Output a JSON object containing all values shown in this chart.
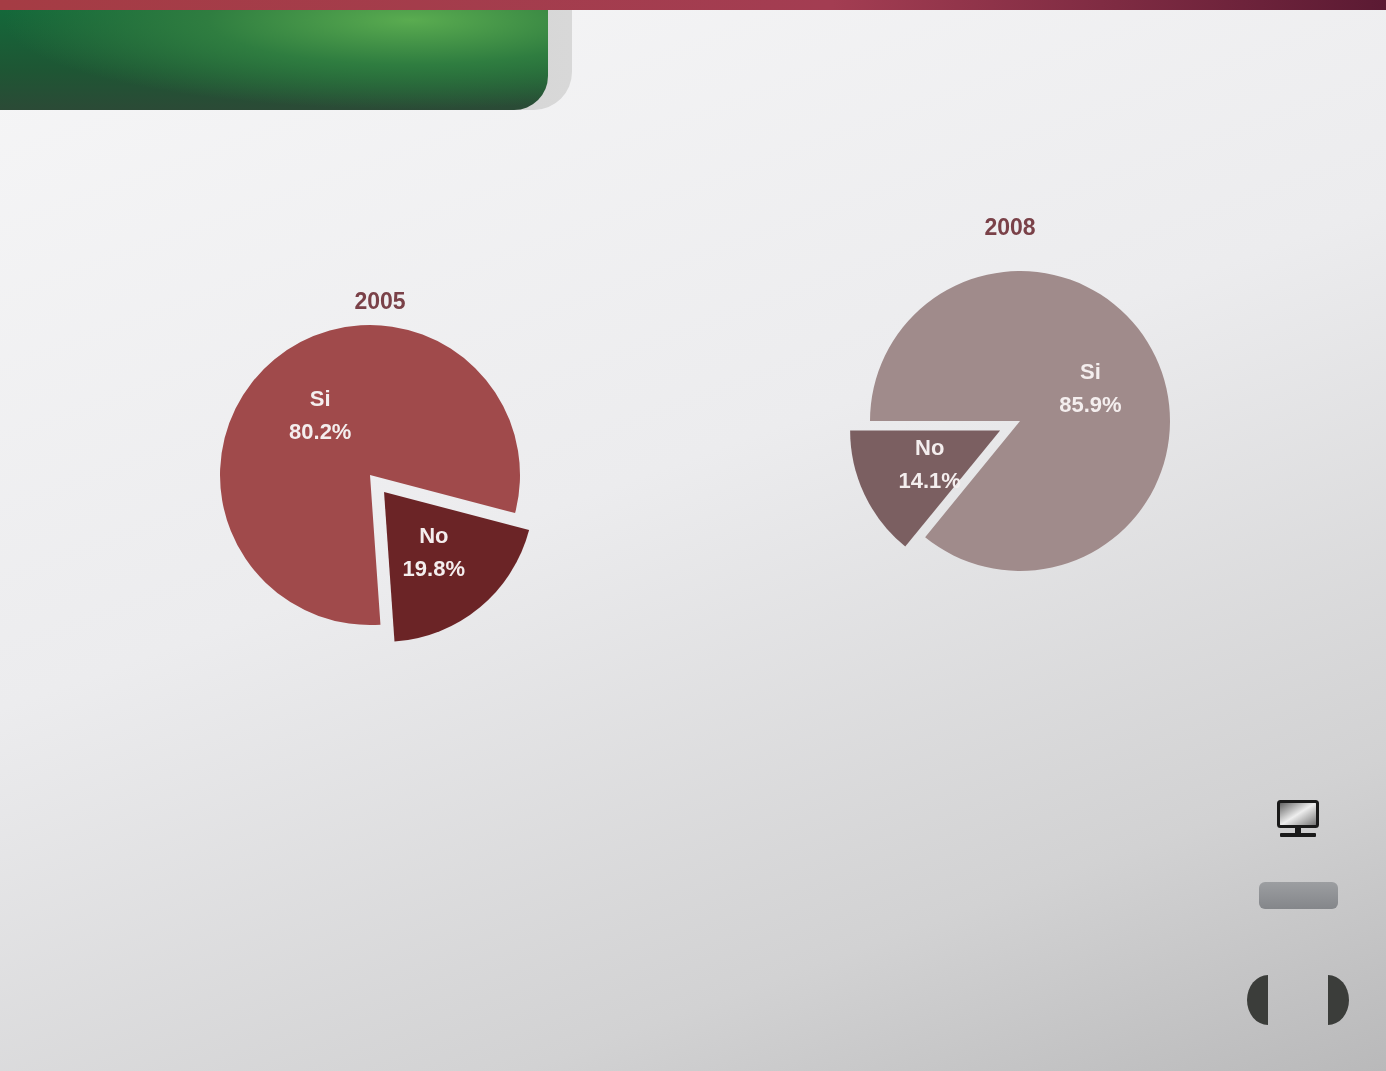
{
  "chart_data": [
    {
      "type": "pie",
      "title": "2005",
      "categories": [
        "Si",
        "No"
      ],
      "values": [
        80.2,
        19.8
      ],
      "colors": [
        "#a04a4b",
        "#6b2426"
      ],
      "value_labels": [
        "80.2%",
        "19.8%"
      ]
    },
    {
      "type": "pie",
      "title": "2008",
      "categories": [
        "Si",
        "No"
      ],
      "values": [
        85.9,
        14.1
      ],
      "colors": [
        "#a08b8b",
        "#7b5f61"
      ],
      "value_labels": [
        "85.9%",
        "14.1%"
      ]
    }
  ]
}
